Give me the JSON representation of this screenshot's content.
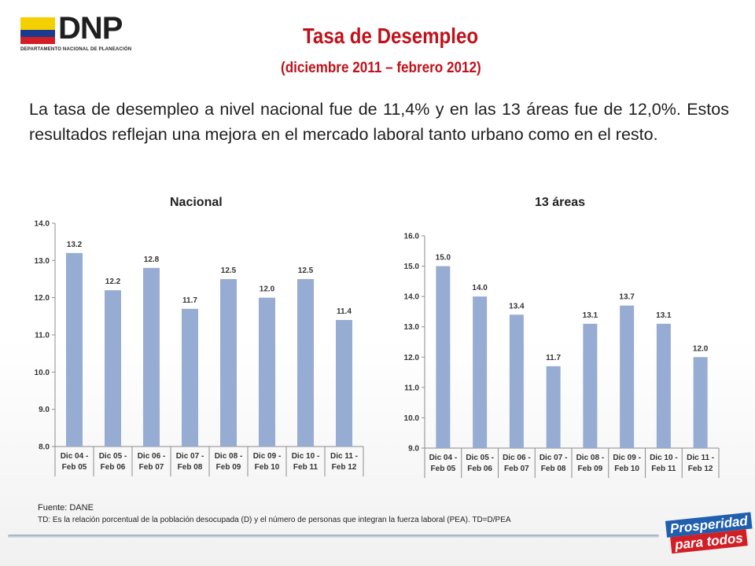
{
  "logo": {
    "text": "DNP",
    "subtitle": "DEPARTAMENTO NACIONAL DE PLANEACIÓN"
  },
  "title": "Tasa de Desempleo",
  "subtitle": "(diciembre 2011 – febrero 2012)",
  "paragraph": "La tasa de desempleo a nivel nacional fue de 11,4% y en las 13 áreas fue de 12,0%. Estos resultados reflejan una mejora en el mercado laboral tanto urbano como en el resto.",
  "colors": {
    "bar": "#97acd2",
    "title": "#c0111a"
  },
  "chart_data": [
    {
      "type": "bar",
      "title": "Nacional",
      "categories": [
        [
          "Dic 04 -",
          "Feb 05"
        ],
        [
          "Dic 05 -",
          "Feb 06"
        ],
        [
          "Dic 06 -",
          "Feb 07"
        ],
        [
          "Dic 07 -",
          "Feb 08"
        ],
        [
          "Dic 08 -",
          "Feb 09"
        ],
        [
          "Dic 09 -",
          "Feb 10"
        ],
        [
          "Dic 10 -",
          "Feb 11"
        ],
        [
          "Dic 11 -",
          "Feb 12"
        ]
      ],
      "values": [
        13.2,
        12.2,
        12.8,
        11.7,
        12.5,
        12.0,
        12.5,
        11.4
      ],
      "ylim": [
        8.0,
        14.0
      ],
      "yticks": [
        "8.0",
        "9.0",
        "10.0",
        "11.0",
        "12.0",
        "13.0",
        "14.0"
      ],
      "labels": [
        "13.2",
        "12.2",
        "12.8",
        "11.7",
        "12.5",
        "12.0",
        "12.5",
        "11.4"
      ],
      "grid": false
    },
    {
      "type": "bar",
      "title": "13 áreas",
      "categories": [
        [
          "Dic 04 -",
          "Feb 05"
        ],
        [
          "Dic 05 -",
          "Feb 06"
        ],
        [
          "Dic 06 -",
          "Feb 07"
        ],
        [
          "Dic 07 -",
          "Feb 08"
        ],
        [
          "Dic 08 -",
          "Feb 09"
        ],
        [
          "Dic 09 -",
          "Feb 10"
        ],
        [
          "Dic 10 -",
          "Feb 11"
        ],
        [
          "Dic 11 -",
          "Feb 12"
        ]
      ],
      "values": [
        15.0,
        14.0,
        13.4,
        11.7,
        13.1,
        13.7,
        13.1,
        12.0
      ],
      "ylim": [
        9.0,
        16.0
      ],
      "yticks": [
        "9.0",
        "10.0",
        "11.0",
        "12.0",
        "13.0",
        "14.0",
        "15.0",
        "16.0"
      ],
      "labels": [
        "15.0",
        "14.0",
        "13.4",
        "11.7",
        "13.1",
        "13.7",
        "13.1",
        "12.0"
      ],
      "grid": false
    }
  ],
  "footer": {
    "source": "Fuente: DANE",
    "note": "TD:  Es la relación porcentual de la población desocupada (D) y el número de personas que integran la fuerza laboral (PEA). TD=D/PEA"
  },
  "badge": {
    "line1": "Prosperidad",
    "line2": "para todos"
  }
}
